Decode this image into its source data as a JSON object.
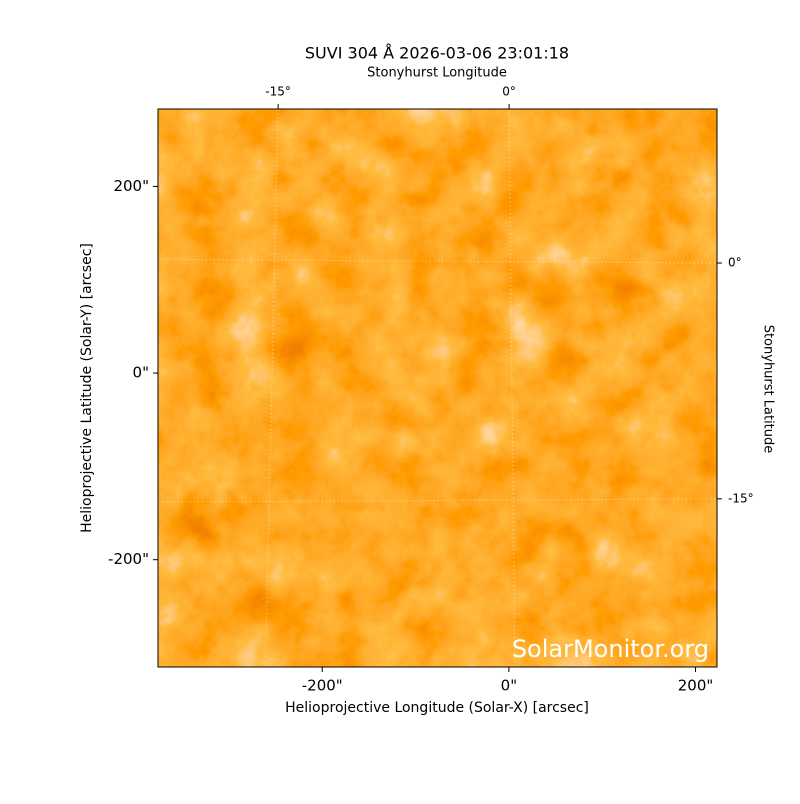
{
  "chart_data": {
    "type": "image",
    "title": "SUVI 304 Å 2026-03-06 23:01:18",
    "x_label": "Helioprojective Longitude (Solar-X) [arcsec]",
    "y_label": "Helioprojective Latitude (Solar-Y) [arcsec]",
    "x2_label": "Stonyhurst Longitude",
    "y2_label": "Stonyhurst Latitude",
    "watermark": "SolarMonitor.org",
    "xlim": [
      -376,
      223
    ],
    "ylim": [
      -315,
      283
    ],
    "xticks": [
      {
        "value": -200,
        "label": "-200\""
      },
      {
        "value": 0,
        "label": "0\""
      },
      {
        "value": 200,
        "label": "200\""
      }
    ],
    "yticks": [
      {
        "value": -200,
        "label": "-200\""
      },
      {
        "value": 0,
        "label": "0\""
      },
      {
        "value": 200,
        "label": "200\""
      }
    ],
    "x2lim": [
      -22.8,
      13.5
    ],
    "x2ticks": [
      {
        "value": -15,
        "label": "-15°"
      },
      {
        "value": 0,
        "label": "0°"
      }
    ],
    "y2lim": [
      -25.7,
      9.8
    ],
    "y2ticks": [
      {
        "value": -15,
        "label": "-15°"
      },
      {
        "value": 0,
        "label": "0°"
      }
    ],
    "grid": true
  }
}
